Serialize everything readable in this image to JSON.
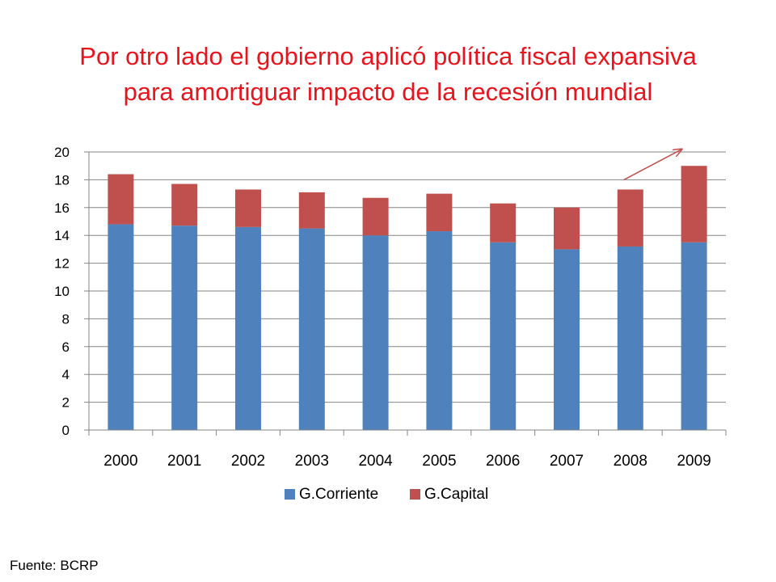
{
  "slide": {
    "title_line1": "Por otro lado el gobierno aplicó política fiscal expansiva",
    "title_line2": "para amortiguar impacto de la recesión mundial",
    "source": "Fuente: BCRP",
    "title_color": "#e8141c"
  },
  "chart_data": {
    "type": "bar",
    "stacked": true,
    "categories": [
      "2000",
      "2001",
      "2002",
      "2003",
      "2004",
      "2005",
      "2006",
      "2007",
      "2008",
      "2009"
    ],
    "series": [
      {
        "name": "G.Corriente",
        "color": "#4f81bd",
        "values": [
          14.8,
          14.7,
          14.6,
          14.5,
          14.0,
          14.3,
          13.5,
          13.0,
          13.2,
          13.5
        ]
      },
      {
        "name": "G.Capital",
        "color": "#c0504d",
        "values": [
          3.6,
          3.0,
          2.7,
          2.6,
          2.7,
          2.7,
          2.8,
          3.0,
          4.1,
          5.5
        ]
      }
    ],
    "ylim": [
      0,
      20
    ],
    "yticks": [
      0,
      2,
      4,
      6,
      8,
      10,
      12,
      14,
      16,
      18,
      20
    ],
    "grid": true,
    "legend": "bottom",
    "annotation": {
      "type": "arrow",
      "from": {
        "x": "2008",
        "y": 18.0
      },
      "to": {
        "x": "2009",
        "y": 20.2
      },
      "color": "#c0504d"
    }
  }
}
